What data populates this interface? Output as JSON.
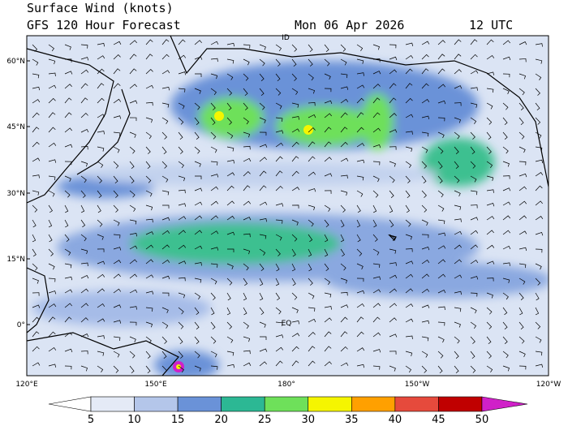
{
  "header": {
    "title": "Surface Wind (knots)",
    "subtitle": "GFS 120 Hour Forecast",
    "date": "Mon 06 Apr 2026",
    "time": "12 UTC"
  },
  "map": {
    "lat_labels": [
      "60°N",
      "45°N",
      "30°N",
      "15°N",
      "0°"
    ],
    "lon_labels": [
      "120°E",
      "150°E",
      "180°",
      "150°W",
      "120°W"
    ],
    "markers": [
      "ID",
      "EQ"
    ]
  },
  "colorbar": {
    "labels": [
      "5",
      "10",
      "15",
      "20",
      "25",
      "30",
      "35",
      "40",
      "45",
      "50"
    ],
    "colors": [
      "#ffffff",
      "#e4eaf6",
      "#b4c6ea",
      "#6a92d8",
      "#2cb894",
      "#6ee05a",
      "#f5f500",
      "#ffa000",
      "#e64a3c",
      "#c00000",
      "#d020c8"
    ]
  }
}
